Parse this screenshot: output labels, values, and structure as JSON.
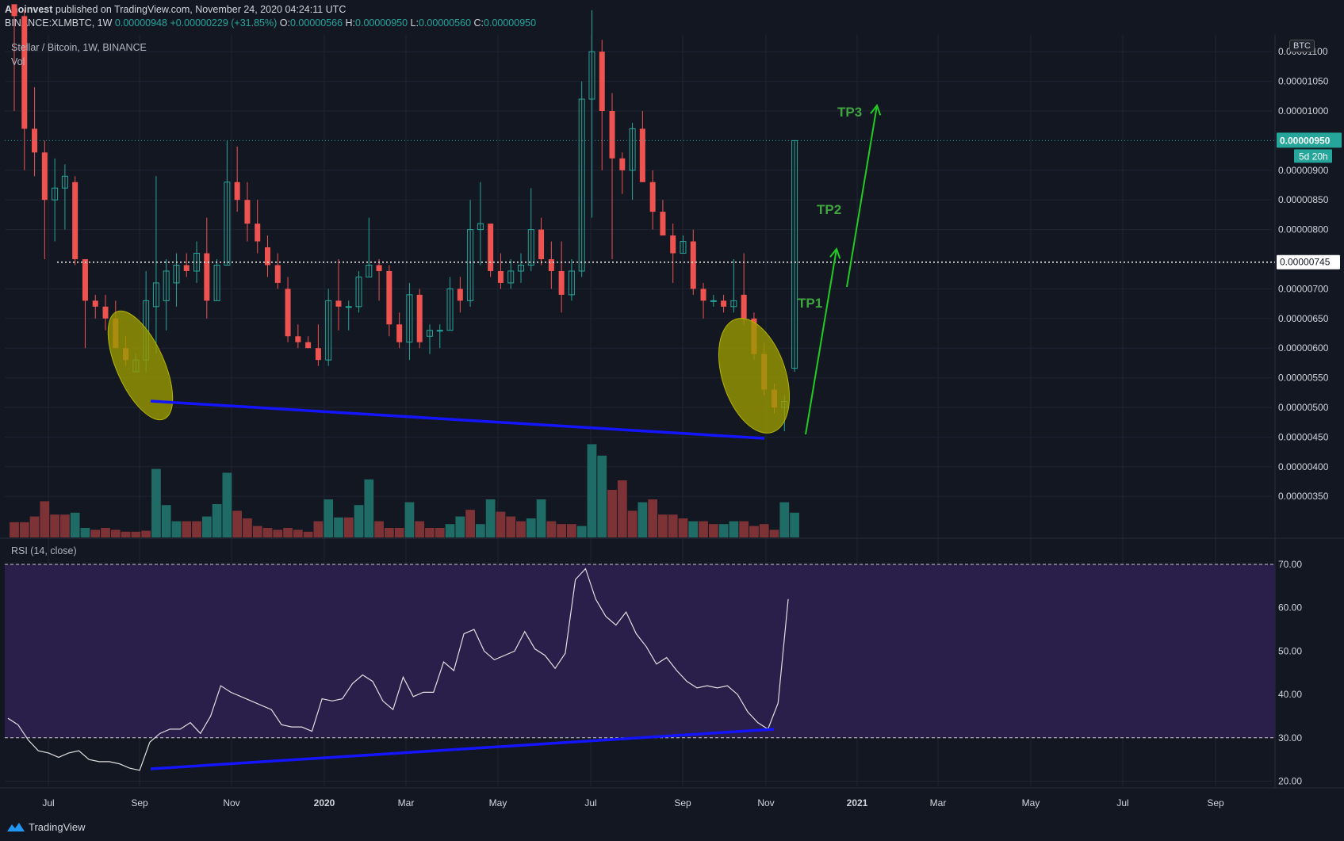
{
  "header": {
    "author": "Anoinvest",
    "published_text": "published on TradingView.com, November 24, 2020 04:24:11 UTC",
    "symbol": "BINANCE:XLMBTC, 1W",
    "price": "0.00000948",
    "change": "+0.00000229 (+31.85%)",
    "o_label": "O:",
    "o_value": "0.00000566",
    "h_label": "H:",
    "h_value": "0.00000950",
    "l_label": "L:",
    "l_value": "0.00000560",
    "c_label": "C:",
    "c_value": "0.00000950"
  },
  "legend": {
    "title": "Stellar / Bitcoin, 1W, BINANCE",
    "volume": "Vol",
    "rsi": "RSI (14, close)"
  },
  "currency": "BTC",
  "footer": {
    "brand": "TradingView"
  },
  "colors": {
    "background": "#131722",
    "up": "#26a69a",
    "down": "#ef5350",
    "rsi_band": "#2a1e4a",
    "trendline": "#1414ff",
    "arrows": "#22cc22",
    "tp_text": "#3fa53f",
    "ellipse": "#9a9a00"
  },
  "chart_data": [
    {
      "type": "candlestick",
      "title": "Stellar / Bitcoin, 1W, BINANCE",
      "y_unit": "BTC",
      "ylim": [
        3.25e-06,
        1.15e-05
      ],
      "y_ticks": [
        "0.00000350",
        "0.00000400",
        "0.00000450",
        "0.00000500",
        "0.00000550",
        "0.00000600",
        "0.00000650",
        "0.00000700",
        "0.00000800",
        "0.00000850",
        "0.00000900",
        "0.00001000",
        "0.00001050",
        "0.00001100"
      ],
      "x_ticks": [
        "Jul",
        "Sep",
        "Nov",
        "2020",
        "Mar",
        "May",
        "Jul",
        "Sep",
        "Nov",
        "2021",
        "Mar",
        "May",
        "Jul",
        "Sep"
      ],
      "current_price_label": "0.00000950",
      "countdown_label": "5d 20h",
      "resistance_label": "0.00000745",
      "resistance_level": 7.45e-06,
      "candles": [
        {
          "o": 11.8,
          "h": 11.8,
          "l": 10.0,
          "c": 11.6
        },
        {
          "o": 11.6,
          "h": 11.7,
          "l": 9.0,
          "c": 9.7
        },
        {
          "o": 9.7,
          "h": 10.4,
          "l": 8.9,
          "c": 9.3
        },
        {
          "o": 9.3,
          "h": 9.5,
          "l": 7.5,
          "c": 8.5
        },
        {
          "o": 8.5,
          "h": 9.2,
          "l": 7.8,
          "c": 8.7
        },
        {
          "o": 8.7,
          "h": 9.1,
          "l": 8.0,
          "c": 8.9
        },
        {
          "o": 8.8,
          "h": 8.9,
          "l": 7.4,
          "c": 7.5
        },
        {
          "o": 7.5,
          "h": 7.5,
          "l": 6.0,
          "c": 6.8
        },
        {
          "o": 6.8,
          "h": 6.9,
          "l": 6.5,
          "c": 6.7
        },
        {
          "o": 6.7,
          "h": 6.9,
          "l": 6.3,
          "c": 6.5
        },
        {
          "o": 6.5,
          "h": 6.8,
          "l": 6.0,
          "c": 6.0
        },
        {
          "o": 6.0,
          "h": 6.2,
          "l": 5.7,
          "c": 5.8
        },
        {
          "o": 5.6,
          "h": 5.9,
          "l": 5.6,
          "c": 5.8
        },
        {
          "o": 5.8,
          "h": 7.3,
          "l": 5.6,
          "c": 6.8
        },
        {
          "o": 6.7,
          "h": 8.9,
          "l": 5.9,
          "c": 7.1
        },
        {
          "o": 6.8,
          "h": 7.5,
          "l": 6.3,
          "c": 7.3
        },
        {
          "o": 7.1,
          "h": 7.6,
          "l": 6.7,
          "c": 7.4
        },
        {
          "o": 7.4,
          "h": 7.6,
          "l": 7.2,
          "c": 7.3
        },
        {
          "o": 7.3,
          "h": 7.8,
          "l": 7.1,
          "c": 7.6
        },
        {
          "o": 7.6,
          "h": 8.2,
          "l": 6.5,
          "c": 6.8
        },
        {
          "o": 6.8,
          "h": 7.5,
          "l": 6.8,
          "c": 7.4
        },
        {
          "o": 7.4,
          "h": 9.5,
          "l": 7.4,
          "c": 8.8
        },
        {
          "o": 8.8,
          "h": 9.4,
          "l": 8.3,
          "c": 8.5
        },
        {
          "o": 8.5,
          "h": 8.8,
          "l": 7.8,
          "c": 8.1
        },
        {
          "o": 8.1,
          "h": 8.5,
          "l": 7.6,
          "c": 7.8
        },
        {
          "o": 7.7,
          "h": 7.9,
          "l": 7.2,
          "c": 7.4
        },
        {
          "o": 7.4,
          "h": 7.6,
          "l": 7.0,
          "c": 7.1
        },
        {
          "o": 7.0,
          "h": 7.2,
          "l": 6.1,
          "c": 6.2
        },
        {
          "o": 6.2,
          "h": 6.4,
          "l": 6.0,
          "c": 6.1
        },
        {
          "o": 6.1,
          "h": 6.2,
          "l": 6.0,
          "c": 6.0
        },
        {
          "o": 6.0,
          "h": 6.4,
          "l": 5.7,
          "c": 5.8
        },
        {
          "o": 5.8,
          "h": 7.0,
          "l": 5.7,
          "c": 6.8
        },
        {
          "o": 6.8,
          "h": 7.5,
          "l": 6.3,
          "c": 6.7
        },
        {
          "o": 6.7,
          "h": 6.8,
          "l": 6.3,
          "c": 6.7
        },
        {
          "o": 6.7,
          "h": 7.3,
          "l": 6.6,
          "c": 7.2
        },
        {
          "o": 7.2,
          "h": 8.2,
          "l": 7.2,
          "c": 7.4
        },
        {
          "o": 7.4,
          "h": 7.5,
          "l": 6.8,
          "c": 7.3
        },
        {
          "o": 7.3,
          "h": 7.4,
          "l": 6.2,
          "c": 6.4
        },
        {
          "o": 6.4,
          "h": 6.6,
          "l": 6.0,
          "c": 6.1
        },
        {
          "o": 6.1,
          "h": 7.1,
          "l": 5.8,
          "c": 6.9
        },
        {
          "o": 6.9,
          "h": 7.0,
          "l": 6.0,
          "c": 6.1
        },
        {
          "o": 6.2,
          "h": 6.4,
          "l": 5.9,
          "c": 6.3
        },
        {
          "o": 6.3,
          "h": 6.4,
          "l": 6.0,
          "c": 6.3
        },
        {
          "o": 6.3,
          "h": 7.2,
          "l": 6.3,
          "c": 7.0
        },
        {
          "o": 7.0,
          "h": 7.2,
          "l": 6.6,
          "c": 6.8
        },
        {
          "o": 6.8,
          "h": 8.5,
          "l": 6.7,
          "c": 8.0
        },
        {
          "o": 8.0,
          "h": 8.8,
          "l": 7.4,
          "c": 8.1
        },
        {
          "o": 8.1,
          "h": 8.1,
          "l": 7.2,
          "c": 7.3
        },
        {
          "o": 7.3,
          "h": 7.6,
          "l": 7.0,
          "c": 7.1
        },
        {
          "o": 7.1,
          "h": 7.5,
          "l": 7.0,
          "c": 7.3
        },
        {
          "o": 7.3,
          "h": 7.6,
          "l": 7.1,
          "c": 7.4
        },
        {
          "o": 7.4,
          "h": 8.7,
          "l": 7.3,
          "c": 8.0
        },
        {
          "o": 8.0,
          "h": 8.2,
          "l": 7.4,
          "c": 7.5
        },
        {
          "o": 7.5,
          "h": 7.8,
          "l": 7.0,
          "c": 7.3
        },
        {
          "o": 7.3,
          "h": 7.8,
          "l": 6.6,
          "c": 6.9
        },
        {
          "o": 6.9,
          "h": 7.5,
          "l": 6.8,
          "c": 7.3
        },
        {
          "o": 7.3,
          "h": 10.5,
          "l": 7.2,
          "c": 10.2
        },
        {
          "o": 10.2,
          "h": 11.7,
          "l": 8.2,
          "c": 11.0
        },
        {
          "o": 11.0,
          "h": 11.2,
          "l": 9.0,
          "c": 10.0
        },
        {
          "o": 10.0,
          "h": 10.3,
          "l": 7.5,
          "c": 9.2
        },
        {
          "o": 9.2,
          "h": 9.3,
          "l": 8.6,
          "c": 9.0
        },
        {
          "o": 9.0,
          "h": 9.8,
          "l": 8.5,
          "c": 9.7
        },
        {
          "o": 9.7,
          "h": 10.0,
          "l": 8.8,
          "c": 8.8
        },
        {
          "o": 8.8,
          "h": 9.0,
          "l": 8.0,
          "c": 8.3
        },
        {
          "o": 8.3,
          "h": 8.5,
          "l": 7.9,
          "c": 7.9
        },
        {
          "o": 7.9,
          "h": 8.1,
          "l": 7.1,
          "c": 7.6
        },
        {
          "o": 7.6,
          "h": 7.9,
          "l": 7.6,
          "c": 7.8
        },
        {
          "o": 7.8,
          "h": 8.0,
          "l": 6.9,
          "c": 7.0
        },
        {
          "o": 7.0,
          "h": 7.1,
          "l": 6.5,
          "c": 6.8
        },
        {
          "o": 6.8,
          "h": 6.9,
          "l": 6.7,
          "c": 6.8
        },
        {
          "o": 6.8,
          "h": 6.9,
          "l": 6.6,
          "c": 6.7
        },
        {
          "o": 6.7,
          "h": 7.5,
          "l": 6.6,
          "c": 6.8
        },
        {
          "o": 6.9,
          "h": 7.6,
          "l": 6.4,
          "c": 6.5
        },
        {
          "o": 6.5,
          "h": 6.6,
          "l": 5.8,
          "c": 5.9
        },
        {
          "o": 5.9,
          "h": 6.1,
          "l": 5.2,
          "c": 5.3
        },
        {
          "o": 5.3,
          "h": 5.4,
          "l": 4.9,
          "c": 5.0
        },
        {
          "o": 5.0,
          "h": 5.2,
          "l": 4.6,
          "c": 5.1
        },
        {
          "o": 5.66,
          "h": 9.5,
          "l": 5.6,
          "c": 9.5
        }
      ],
      "volume": [
        {
          "v": 16,
          "up": false
        },
        {
          "v": 16,
          "up": false
        },
        {
          "v": 22,
          "up": false
        },
        {
          "v": 38,
          "up": false
        },
        {
          "v": 24,
          "up": false
        },
        {
          "v": 24,
          "up": false
        },
        {
          "v": 26,
          "up": true
        },
        {
          "v": 10,
          "up": true
        },
        {
          "v": 8,
          "up": false
        },
        {
          "v": 10,
          "up": false
        },
        {
          "v": 8,
          "up": false
        },
        {
          "v": 6,
          "up": false
        },
        {
          "v": 6,
          "up": false
        },
        {
          "v": 7,
          "up": false
        },
        {
          "v": 72,
          "up": true
        },
        {
          "v": 34,
          "up": true
        },
        {
          "v": 17,
          "up": true
        },
        {
          "v": 17,
          "up": false
        },
        {
          "v": 17,
          "up": false
        },
        {
          "v": 22,
          "up": true
        },
        {
          "v": 35,
          "up": true
        },
        {
          "v": 68,
          "up": true
        },
        {
          "v": 28,
          "up": false
        },
        {
          "v": 20,
          "up": false
        },
        {
          "v": 12,
          "up": false
        },
        {
          "v": 10,
          "up": false
        },
        {
          "v": 8,
          "up": false
        },
        {
          "v": 10,
          "up": false
        },
        {
          "v": 8,
          "up": false
        },
        {
          "v": 6,
          "up": false
        },
        {
          "v": 17,
          "up": false
        },
        {
          "v": 40,
          "up": true
        },
        {
          "v": 21,
          "up": true
        },
        {
          "v": 21,
          "up": false
        },
        {
          "v": 34,
          "up": true
        },
        {
          "v": 61,
          "up": true
        },
        {
          "v": 17,
          "up": false
        },
        {
          "v": 10,
          "up": false
        },
        {
          "v": 10,
          "up": false
        },
        {
          "v": 37,
          "up": true
        },
        {
          "v": 17,
          "up": false
        },
        {
          "v": 10,
          "up": false
        },
        {
          "v": 10,
          "up": false
        },
        {
          "v": 14,
          "up": true
        },
        {
          "v": 22,
          "up": true
        },
        {
          "v": 29,
          "up": false
        },
        {
          "v": 14,
          "up": true
        },
        {
          "v": 40,
          "up": true
        },
        {
          "v": 27,
          "up": false
        },
        {
          "v": 22,
          "up": false
        },
        {
          "v": 17,
          "up": false
        },
        {
          "v": 20,
          "up": true
        },
        {
          "v": 40,
          "up": true
        },
        {
          "v": 17,
          "up": false
        },
        {
          "v": 14,
          "up": false
        },
        {
          "v": 14,
          "up": false
        },
        {
          "v": 12,
          "up": true
        },
        {
          "v": 98,
          "up": true
        },
        {
          "v": 86,
          "up": true
        },
        {
          "v": 50,
          "up": false
        },
        {
          "v": 60,
          "up": false
        },
        {
          "v": 28,
          "up": false
        },
        {
          "v": 37,
          "up": true
        },
        {
          "v": 40,
          "up": false
        },
        {
          "v": 24,
          "up": false
        },
        {
          "v": 24,
          "up": false
        },
        {
          "v": 20,
          "up": false
        },
        {
          "v": 17,
          "up": true
        },
        {
          "v": 17,
          "up": false
        },
        {
          "v": 14,
          "up": false
        },
        {
          "v": 14,
          "up": true
        },
        {
          "v": 17,
          "up": true
        },
        {
          "v": 17,
          "up": false
        },
        {
          "v": 12,
          "up": false
        },
        {
          "v": 14,
          "up": false
        },
        {
          "v": 8,
          "up": false
        },
        {
          "v": 37,
          "up": true
        },
        {
          "v": 26,
          "up": true
        }
      ]
    },
    {
      "type": "line",
      "title": "RSI (14, close)",
      "ylim": [
        17,
        73
      ],
      "y_ticks": [
        "20.00",
        "30.00",
        "40.00",
        "50.00",
        "60.00",
        "70.00"
      ],
      "band": [
        30,
        70
      ],
      "values": [
        34.5,
        33,
        29.5,
        27,
        26.5,
        25.5,
        26.5,
        27,
        25,
        24.5,
        24.5,
        24,
        23,
        22.5,
        29,
        31,
        32,
        32,
        33.5,
        31,
        35,
        42,
        40.5,
        39.5,
        38.5,
        37.5,
        36.5,
        33,
        32.5,
        32.5,
        31.5,
        39,
        38.5,
        39,
        42.5,
        44.5,
        43,
        38.5,
        36.5,
        44,
        39.5,
        40.5,
        40.5,
        47.5,
        45.5,
        54,
        55,
        50,
        48,
        49,
        50,
        54.5,
        50.5,
        49,
        46,
        49.5,
        66.5,
        69,
        62,
        58,
        56,
        59,
        54,
        51,
        47,
        48.5,
        45.5,
        43,
        41.5,
        42,
        41.5,
        42,
        40,
        36,
        33.5,
        32,
        38,
        62
      ]
    }
  ],
  "annotations": {
    "tp1": "TP1",
    "tp2": "TP2",
    "tp3": "TP3"
  }
}
